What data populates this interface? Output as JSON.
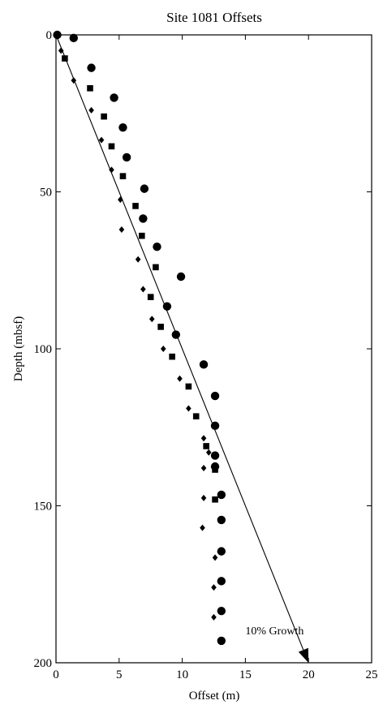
{
  "chart_data": {
    "type": "scatter",
    "title": "Site 1081 Offsets",
    "xlabel": "Offset (m)",
    "ylabel": "Depth (mbsf)",
    "xlim": [
      0,
      25
    ],
    "ylim": [
      0,
      200
    ],
    "y_inverted": true,
    "grid": false,
    "x_ticks": [
      0,
      5,
      10,
      15,
      20,
      25
    ],
    "y_ticks": [
      0,
      50,
      100,
      150,
      200
    ],
    "series": [
      {
        "marker": "circle",
        "points": [
          [
            0.1,
            0
          ],
          [
            1.4,
            1
          ],
          [
            2.8,
            10.5
          ],
          [
            4.6,
            20
          ],
          [
            5.3,
            29.5
          ],
          [
            5.6,
            39
          ],
          [
            7.0,
            49
          ],
          [
            6.9,
            58.5
          ],
          [
            8.0,
            67.5
          ],
          [
            9.9,
            77
          ],
          [
            8.8,
            86.5
          ],
          [
            9.5,
            95.5
          ],
          [
            11.7,
            105
          ],
          [
            12.6,
            115
          ],
          [
            12.6,
            124.5
          ],
          [
            12.6,
            134
          ],
          [
            12.6,
            137.5
          ],
          [
            13.1,
            146.5
          ],
          [
            13.1,
            154.5
          ],
          [
            13.1,
            164.5
          ],
          [
            13.1,
            174
          ],
          [
            13.1,
            183.5
          ],
          [
            13.1,
            193
          ]
        ]
      },
      {
        "marker": "square",
        "points": [
          [
            0.7,
            7.5
          ],
          [
            2.7,
            17
          ],
          [
            3.8,
            26
          ],
          [
            4.4,
            35.5
          ],
          [
            5.3,
            45
          ],
          [
            6.3,
            54.5
          ],
          [
            6.8,
            64
          ],
          [
            7.9,
            74
          ],
          [
            7.5,
            83.5
          ],
          [
            8.3,
            93
          ],
          [
            9.2,
            102.5
          ],
          [
            10.5,
            112
          ],
          [
            11.1,
            121.5
          ],
          [
            11.9,
            131
          ],
          [
            12.6,
            138.5
          ],
          [
            12.6,
            148
          ]
        ]
      },
      {
        "marker": "diamond",
        "points": [
          [
            0.4,
            5
          ],
          [
            1.4,
            14.5
          ],
          [
            2.8,
            24
          ],
          [
            3.6,
            33.5
          ],
          [
            4.4,
            43
          ],
          [
            5.1,
            52.5
          ],
          [
            5.2,
            62
          ],
          [
            6.5,
            71.5
          ],
          [
            6.9,
            81
          ],
          [
            7.6,
            90.5
          ],
          [
            8.5,
            100
          ],
          [
            9.8,
            109.5
          ],
          [
            10.5,
            119
          ],
          [
            11.7,
            128.5
          ],
          [
            12.1,
            133
          ],
          [
            11.7,
            138
          ],
          [
            11.7,
            147.5
          ],
          [
            11.6,
            157
          ],
          [
            12.6,
            166.5
          ],
          [
            12.5,
            176
          ],
          [
            12.5,
            185.5
          ]
        ]
      }
    ],
    "trend_arrow": {
      "from": [
        0,
        0
      ],
      "to": [
        20,
        200
      ],
      "label": "10% Growth",
      "label_at": [
        15,
        191
      ]
    }
  }
}
